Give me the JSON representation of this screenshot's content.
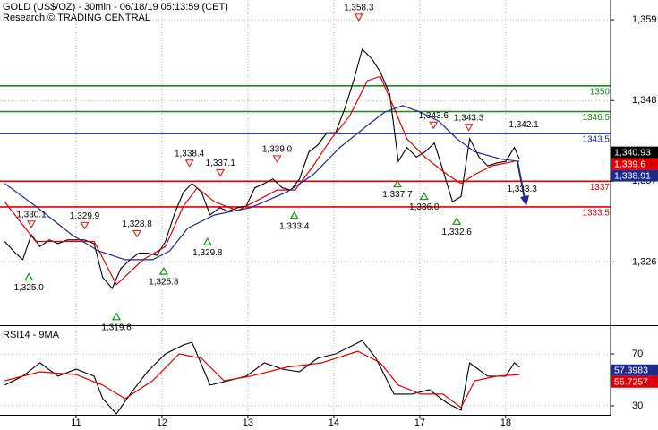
{
  "chart_data": [
    {
      "type": "line",
      "title": "GOLD (US$/OZ) - 30min - 06/18/19 05:13:59 (CET)",
      "subtitle": "Research © TRADING CENTRAL",
      "xlim": [
        0.115,
        7.22
      ],
      "ylim": [
        1317.5,
        1361.7
      ],
      "yticks": [
        {
          "value": 1359,
          "label": "1,359"
        },
        {
          "value": 1348,
          "label": "1,348"
        },
        {
          "value": 1337,
          "label": "1,337"
        },
        {
          "value": 1326,
          "label": "1,326"
        }
      ],
      "grid": true,
      "series": [
        {
          "color": "#000000",
          "x": [
            0.17,
            0.27,
            0.38,
            0.48,
            0.58,
            0.69,
            0.79,
            0.9,
            1.0,
            1.1,
            1.21,
            1.31,
            1.42,
            1.52,
            1.63,
            1.73,
            1.83,
            1.94,
            2.04,
            2.15,
            2.25,
            2.35,
            2.46,
            2.56,
            2.67,
            2.77,
            2.88,
            2.98,
            3.08,
            3.19,
            3.29,
            3.4,
            3.5,
            3.6,
            3.71,
            3.81,
            3.92,
            4.02,
            4.13,
            4.23,
            4.33,
            4.44,
            4.54,
            4.65,
            4.75,
            4.85,
            4.96,
            5.06,
            5.17,
            5.27,
            5.38,
            5.48,
            5.58,
            5.69,
            5.79,
            5.9,
            6.0,
            6.1,
            6.16
          ],
          "values": [
            1328.8,
            1327.5,
            1326.3,
            1329.7,
            1328.1,
            1329.0,
            1328.5,
            1329.0,
            1329.0,
            1329.0,
            1328.5,
            1323.9,
            1322.4,
            1325.1,
            1326.3,
            1327.2,
            1327.2,
            1326.9,
            1328.8,
            1332.7,
            1335.5,
            1336.7,
            1335.5,
            1332.4,
            1333.4,
            1332.9,
            1333.4,
            1333.6,
            1336.1,
            1336.7,
            1337.3,
            1336.1,
            1335.8,
            1337.3,
            1341.0,
            1341.9,
            1343.6,
            1343.6,
            1347.0,
            1350.7,
            1355.0,
            1353.7,
            1351.9,
            1348.9,
            1339.7,
            1341.6,
            1340.3,
            1341.0,
            1342.2,
            1338.5,
            1334.2,
            1334.9,
            1342.8,
            1340.3,
            1339.1,
            1339.5,
            1339.7,
            1341.6,
            1340.0
          ]
        },
        {
          "color": "#e00000",
          "x": [
            0.17,
            0.53,
            1.21,
            1.47,
            1.78,
            2.04,
            2.25,
            2.41,
            2.61,
            2.88,
            3.08,
            3.34,
            3.55,
            3.76,
            3.97,
            4.18,
            4.39,
            4.54,
            4.7,
            4.85,
            5.06,
            5.32,
            5.48,
            5.64,
            5.84,
            6.1
          ],
          "values": [
            1334.2,
            1328.8,
            1328.8,
            1322.9,
            1326.3,
            1328.1,
            1333.6,
            1336.1,
            1334.2,
            1333.0,
            1334.2,
            1335.8,
            1335.8,
            1339.1,
            1342.8,
            1345.8,
            1350.7,
            1351.3,
            1347.0,
            1342.8,
            1340.3,
            1337.9,
            1336.7,
            1337.9,
            1339.1,
            1339.7
          ]
        },
        {
          "color": "#1f2a8a",
          "x": [
            0.17,
            0.53,
            0.95,
            1.26,
            1.57,
            1.89,
            2.09,
            2.3,
            2.61,
            3.03,
            3.45,
            3.76,
            4.07,
            4.39,
            4.59,
            4.8,
            5.01,
            5.22,
            5.43,
            5.64,
            5.95,
            6.16
          ],
          "values": [
            1336.7,
            1333.6,
            1329.7,
            1327.5,
            1326.3,
            1326.3,
            1327.5,
            1330.6,
            1332.4,
            1333.4,
            1335.5,
            1337.9,
            1341.6,
            1344.6,
            1346.4,
            1347.3,
            1346.4,
            1345.2,
            1342.8,
            1341.0,
            1340.0,
            1339.7
          ]
        }
      ],
      "levels": [
        {
          "value": 1350,
          "color": "#1a8a1a"
        },
        {
          "value": 1346.5,
          "color": "#1a8a1a"
        },
        {
          "value": 1343.5,
          "color": "#1f2a8a"
        },
        {
          "value": 1337,
          "color": "#e00000"
        },
        {
          "value": 1333.5,
          "color": "#e00000"
        }
      ],
      "high_color": "#d03030",
      "low_color": "#1a8a1a",
      "annotations": [
        {
          "kind": "high",
          "x": 0.48,
          "value": 1330.1,
          "label": "1,330.1"
        },
        {
          "kind": "high",
          "x": 1.1,
          "value": 1329.9,
          "label": "1,329.9"
        },
        {
          "kind": "high",
          "x": 1.71,
          "value": 1328.8,
          "label": "1,328.8"
        },
        {
          "kind": "high",
          "x": 2.32,
          "value": 1338.4,
          "label": "1,338.4"
        },
        {
          "kind": "high",
          "x": 2.68,
          "value": 1337.1,
          "label": "1,337.1"
        },
        {
          "kind": "high",
          "x": 3.34,
          "value": 1339.0,
          "label": "1,339.0"
        },
        {
          "kind": "high",
          "x": 4.29,
          "value": 1358.3,
          "label": "1,358.3"
        },
        {
          "kind": "high",
          "x": 5.16,
          "value": 1343.6,
          "label": "1,343.6"
        },
        {
          "kind": "high",
          "x": 5.57,
          "value": 1343.3,
          "label": "1,343.3"
        },
        {
          "kind": "note",
          "x": 6.21,
          "value": 1342.1,
          "label": "1,342.1"
        },
        {
          "kind": "low",
          "x": 0.45,
          "value": 1325.0,
          "label": "1,325.0"
        },
        {
          "kind": "low",
          "x": 1.47,
          "value": 1319.6,
          "label": "1,319.6"
        },
        {
          "kind": "low",
          "x": 2.02,
          "value": 1325.8,
          "label": "1,325.8"
        },
        {
          "kind": "low",
          "x": 2.53,
          "value": 1329.8,
          "label": "1,329.8"
        },
        {
          "kind": "low",
          "x": 3.54,
          "value": 1333.4,
          "label": "1,333.4"
        },
        {
          "kind": "low",
          "x": 4.74,
          "value": 1337.7,
          "label": "1,337.7"
        },
        {
          "kind": "low",
          "x": 5.05,
          "value": 1336.0,
          "label": "1,336.0"
        },
        {
          "kind": "low",
          "x": 5.43,
          "value": 1332.6,
          "label": "1,332.6"
        },
        {
          "kind": "note",
          "x": 6.19,
          "value": 1333.3,
          "label": "1,333.3"
        }
      ],
      "price_tags": [
        {
          "value": 1340.93,
          "label": "1,340.93",
          "color": "#000000"
        },
        {
          "value": 1339.6,
          "label": "1,339.6",
          "color": "#e00000"
        },
        {
          "value": 1338.91,
          "label": "1,338.91",
          "color": "#1f2a8a"
        }
      ]
    },
    {
      "type": "line",
      "title": "RSI14 - 9MA",
      "xlim": [
        0.115,
        7.22
      ],
      "xticks": [
        {
          "value": 1,
          "label": "11"
        },
        {
          "value": 2,
          "label": "12"
        },
        {
          "value": 3,
          "label": "13"
        },
        {
          "value": 4,
          "label": "14"
        },
        {
          "value": 5,
          "label": "17"
        },
        {
          "value": 6,
          "label": "18"
        }
      ],
      "ylim": [
        23.1,
        90.7
      ],
      "yticks": [
        70,
        30
      ],
      "grid": true,
      "series": [
        {
          "color": "#000000",
          "x": [
            0.17,
            0.38,
            0.58,
            0.79,
            1.0,
            1.21,
            1.31,
            1.47,
            1.63,
            1.83,
            2.04,
            2.25,
            2.35,
            2.56,
            2.77,
            2.98,
            3.19,
            3.4,
            3.6,
            3.81,
            4.02,
            4.23,
            4.33,
            4.49,
            4.7,
            4.91,
            5.11,
            5.32,
            5.48,
            5.58,
            5.79,
            6.0,
            6.1,
            6.16
          ],
          "values": [
            45.9,
            52.8,
            63.1,
            52.8,
            58.3,
            52.8,
            35.5,
            23.8,
            39.0,
            56.2,
            70.0,
            76.9,
            79.0,
            45.9,
            49.3,
            52.8,
            63.1,
            58.3,
            56.2,
            66.6,
            70.0,
            76.9,
            80.3,
            66.6,
            39.0,
            39.0,
            42.4,
            32.1,
            26.6,
            63.1,
            52.8,
            52.8,
            63.1,
            59.7
          ]
        },
        {
          "color": "#e00000",
          "x": [
            0.17,
            0.58,
            1.0,
            1.31,
            1.57,
            1.89,
            2.2,
            2.46,
            2.72,
            3.03,
            3.45,
            3.86,
            4.28,
            4.54,
            4.75,
            5.01,
            5.27,
            5.48,
            5.64,
            5.9,
            6.16
          ],
          "values": [
            49.3,
            56.2,
            54.1,
            45.9,
            35.5,
            49.3,
            70.0,
            66.6,
            49.3,
            52.8,
            59.7,
            63.1,
            72.1,
            63.1,
            45.9,
            39.0,
            39.0,
            28.6,
            49.3,
            52.8,
            54.1
          ]
        }
      ],
      "price_tags": [
        {
          "value": 57.3983,
          "color": "#1f2a8a"
        },
        {
          "value": 55.7257,
          "color": "#e00000"
        }
      ]
    }
  ]
}
